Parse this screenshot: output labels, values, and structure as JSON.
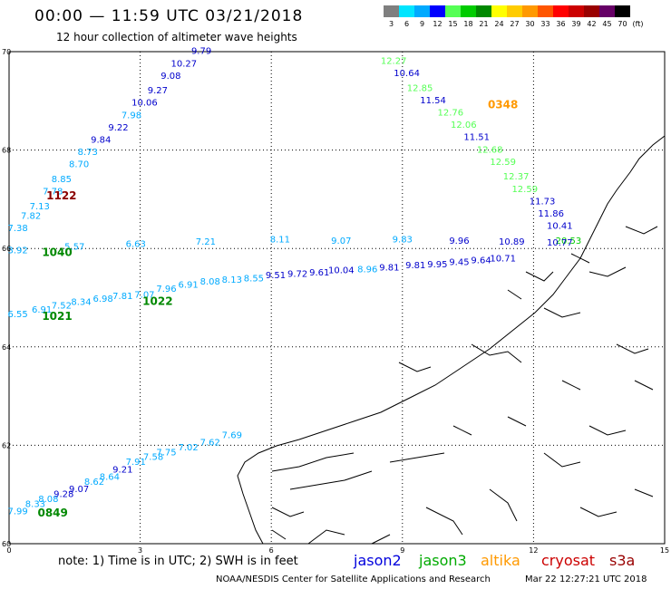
{
  "header": {
    "title": "00:00 — 11:59 UTC 03/21/2018",
    "subtitle": "12 hour collection of altimeter wave heights"
  },
  "colorbar": {
    "labels": [
      "3",
      "6",
      "9",
      "12",
      "15",
      "18",
      "21",
      "24",
      "27",
      "30",
      "33",
      "36",
      "39",
      "42",
      "45",
      "70",
      "(ft)"
    ],
    "colors": [
      "#7f7f7f",
      "#00e5ff",
      "#00aaff",
      "#0000ff",
      "#55ff55",
      "#00cc00",
      "#008800",
      "#ffff00",
      "#ffcc00",
      "#ff9900",
      "#ff5500",
      "#ff0000",
      "#cc0000",
      "#990000",
      "#660066",
      "#000000"
    ]
  },
  "axes": {
    "x_ticks": [
      "0",
      "3",
      "6",
      "9",
      "12",
      "15"
    ],
    "y_ticks": [
      "70",
      "68",
      "66",
      "64",
      "62",
      "60"
    ]
  },
  "chart_data": {
    "type": "scatter",
    "xlabel": "",
    "ylabel": "",
    "xlim": [
      0,
      15
    ],
    "ylim": [
      60,
      70
    ],
    "tracks": [
      {
        "name": "track_a_1122",
        "time_label": "1122",
        "time_color": "#8b0000",
        "time_pos": [
          1.2,
          67.0
        ],
        "points": [
          {
            "x": 4.4,
            "y": 69.95,
            "v": "9.79",
            "c": "#0000cc"
          },
          {
            "x": 4.0,
            "y": 69.7,
            "v": "10.27",
            "c": "#0000cc"
          },
          {
            "x": 3.7,
            "y": 69.45,
            "v": "9.08",
            "c": "#0000cc"
          },
          {
            "x": 3.4,
            "y": 69.15,
            "v": "9.27",
            "c": "#0000cc"
          },
          {
            "x": 3.1,
            "y": 68.9,
            "v": "10.06",
            "c": "#0000cc"
          },
          {
            "x": 2.8,
            "y": 68.65,
            "v": "7.98",
            "c": "#00aaff"
          },
          {
            "x": 2.5,
            "y": 68.4,
            "v": "9.22",
            "c": "#0000cc"
          },
          {
            "x": 2.1,
            "y": 68.15,
            "v": "9.84",
            "c": "#0000cc"
          },
          {
            "x": 1.8,
            "y": 67.9,
            "v": "8.73",
            "c": "#00aaff"
          },
          {
            "x": 1.6,
            "y": 67.65,
            "v": "8.70",
            "c": "#00aaff"
          },
          {
            "x": 1.2,
            "y": 67.35,
            "v": "8.85",
            "c": "#00aaff"
          },
          {
            "x": 1.0,
            "y": 67.1,
            "v": "7.78",
            "c": "#00aaff"
          },
          {
            "x": 0.7,
            "y": 66.8,
            "v": "7.13",
            "c": "#00aaff"
          },
          {
            "x": 0.5,
            "y": 66.6,
            "v": "7.82",
            "c": "#00aaff"
          },
          {
            "x": 0.2,
            "y": 66.35,
            "v": "7.38",
            "c": "#00aaff"
          }
        ]
      },
      {
        "name": "track_b_0348",
        "time_label": "0348",
        "time_color": "#ff9900",
        "time_pos": [
          11.3,
          68.85
        ],
        "points": [
          {
            "x": 8.8,
            "y": 69.75,
            "v": "12.27",
            "c": "#55ff55"
          },
          {
            "x": 9.1,
            "y": 69.5,
            "v": "10.64",
            "c": "#0000cc"
          },
          {
            "x": 9.4,
            "y": 69.2,
            "v": "12.85",
            "c": "#55ff55"
          },
          {
            "x": 9.7,
            "y": 68.95,
            "v": "11.54",
            "c": "#0000cc"
          },
          {
            "x": 10.1,
            "y": 68.7,
            "v": "12.76",
            "c": "#55ff55"
          },
          {
            "x": 10.4,
            "y": 68.45,
            "v": "12.06",
            "c": "#55ff55"
          },
          {
            "x": 10.7,
            "y": 68.2,
            "v": "11.51",
            "c": "#0000cc"
          },
          {
            "x": 11.0,
            "y": 67.95,
            "v": "12.68",
            "c": "#55ff55"
          },
          {
            "x": 11.3,
            "y": 67.7,
            "v": "12.59",
            "c": "#55ff55"
          },
          {
            "x": 11.6,
            "y": 67.4,
            "v": "12.37",
            "c": "#55ff55"
          },
          {
            "x": 11.8,
            "y": 67.15,
            "v": "12.59",
            "c": "#55ff55"
          },
          {
            "x": 12.2,
            "y": 66.9,
            "v": "11.73",
            "c": "#0000cc"
          },
          {
            "x": 12.4,
            "y": 66.65,
            "v": "11.86",
            "c": "#0000cc"
          },
          {
            "x": 12.6,
            "y": 66.4,
            "v": "10.41",
            "c": "#0000cc"
          },
          {
            "x": 12.8,
            "y": 66.1,
            "v": "20.53",
            "c": "#00cc00"
          }
        ]
      },
      {
        "name": "track_c_1040",
        "time_label": "1040",
        "time_color": "#008800",
        "time_pos": [
          1.1,
          65.85
        ],
        "points": [
          {
            "x": 0.2,
            "y": 65.9,
            "v": "3.92",
            "c": "#00aaff"
          },
          {
            "x": 1.5,
            "y": 65.98,
            "v": "5.57",
            "c": "#00aaff"
          },
          {
            "x": 2.9,
            "y": 66.03,
            "v": "6.63",
            "c": "#00aaff"
          },
          {
            "x": 4.5,
            "y": 66.08,
            "v": "7.21",
            "c": "#00aaff"
          },
          {
            "x": 6.2,
            "y": 66.12,
            "v": "8.11",
            "c": "#00aaff"
          },
          {
            "x": 7.6,
            "y": 66.1,
            "v": "9.07",
            "c": "#00aaff"
          },
          {
            "x": 9.0,
            "y": 66.12,
            "v": "9.83",
            "c": "#00aaff"
          },
          {
            "x": 10.3,
            "y": 66.1,
            "v": "9.96",
            "c": "#0000cc"
          },
          {
            "x": 11.5,
            "y": 66.08,
            "v": "10.89",
            "c": "#0000cc"
          },
          {
            "x": 12.6,
            "y": 66.06,
            "v": "10.77",
            "c": "#0000cc"
          }
        ]
      },
      {
        "name": "track_d_1022",
        "time_label": "1022",
        "time_color": "#008800",
        "time_pos": [
          3.4,
          64.85
        ],
        "points": [
          {
            "x": 3.1,
            "y": 65.0,
            "v": "7.07",
            "c": "#00aaff"
          },
          {
            "x": 3.6,
            "y": 65.12,
            "v": "7.96",
            "c": "#00aaff"
          },
          {
            "x": 4.1,
            "y": 65.2,
            "v": "6.91",
            "c": "#00aaff"
          },
          {
            "x": 4.6,
            "y": 65.27,
            "v": "8.08",
            "c": "#00aaff"
          },
          {
            "x": 5.1,
            "y": 65.3,
            "v": "8.13",
            "c": "#00aaff"
          },
          {
            "x": 5.6,
            "y": 65.33,
            "v": "8.55",
            "c": "#00aaff"
          },
          {
            "x": 6.1,
            "y": 65.4,
            "v": "9.51",
            "c": "#0000cc"
          },
          {
            "x": 6.6,
            "y": 65.42,
            "v": "9.72",
            "c": "#0000cc"
          },
          {
            "x": 7.1,
            "y": 65.45,
            "v": "9.61",
            "c": "#0000cc"
          },
          {
            "x": 7.6,
            "y": 65.5,
            "v": "10.04",
            "c": "#0000cc"
          },
          {
            "x": 8.2,
            "y": 65.52,
            "v": "8.96",
            "c": "#00aaff"
          },
          {
            "x": 8.7,
            "y": 65.55,
            "v": "9.81",
            "c": "#0000cc"
          },
          {
            "x": 9.3,
            "y": 65.6,
            "v": "9.81",
            "c": "#0000cc"
          },
          {
            "x": 9.8,
            "y": 65.62,
            "v": "9.95",
            "c": "#0000cc"
          },
          {
            "x": 10.3,
            "y": 65.66,
            "v": "9.45",
            "c": "#0000cc"
          },
          {
            "x": 10.8,
            "y": 65.7,
            "v": "9.64",
            "c": "#0000cc"
          },
          {
            "x": 11.3,
            "y": 65.74,
            "v": "10.71",
            "c": "#0000cc"
          }
        ]
      },
      {
        "name": "track_e_1021",
        "time_label": "1021",
        "time_color": "#008800",
        "time_pos": [
          1.1,
          64.55
        ],
        "points": [
          {
            "x": 0.2,
            "y": 64.6,
            "v": "6.55",
            "c": "#00aaff"
          },
          {
            "x": 0.75,
            "y": 64.7,
            "v": "6.91",
            "c": "#00aaff"
          },
          {
            "x": 1.2,
            "y": 64.78,
            "v": "7.52",
            "c": "#00aaff"
          },
          {
            "x": 1.65,
            "y": 64.85,
            "v": "8.34",
            "c": "#00aaff"
          },
          {
            "x": 2.15,
            "y": 64.92,
            "v": "6.98",
            "c": "#00aaff"
          },
          {
            "x": 2.6,
            "y": 64.97,
            "v": "7.81",
            "c": "#00aaff"
          }
        ]
      },
      {
        "name": "track_f_0849",
        "time_label": "0849",
        "time_color": "#008800",
        "time_pos": [
          1.0,
          60.55
        ],
        "points": [
          {
            "x": 0.2,
            "y": 60.6,
            "v": "7.99",
            "c": "#00aaff"
          },
          {
            "x": 0.6,
            "y": 60.75,
            "v": "8.33",
            "c": "#00aaff"
          },
          {
            "x": 0.9,
            "y": 60.85,
            "v": "8.08",
            "c": "#00aaff"
          },
          {
            "x": 1.25,
            "y": 60.95,
            "v": "9.28",
            "c": "#0000cc"
          },
          {
            "x": 1.6,
            "y": 61.05,
            "v": "9.07",
            "c": "#0000cc"
          },
          {
            "x": 1.95,
            "y": 61.2,
            "v": "8.62",
            "c": "#00aaff"
          },
          {
            "x": 2.3,
            "y": 61.3,
            "v": "8.64",
            "c": "#00aaff"
          },
          {
            "x": 2.6,
            "y": 61.45,
            "v": "9.21",
            "c": "#0000cc"
          },
          {
            "x": 2.9,
            "y": 61.6,
            "v": "7.91",
            "c": "#00aaff"
          },
          {
            "x": 3.3,
            "y": 61.7,
            "v": "7.58",
            "c": "#00aaff"
          },
          {
            "x": 3.6,
            "y": 61.8,
            "v": "7.75",
            "c": "#00aaff"
          },
          {
            "x": 4.1,
            "y": 61.9,
            "v": "7.02",
            "c": "#00aaff"
          },
          {
            "x": 4.6,
            "y": 62.0,
            "v": "7.62",
            "c": "#00aaff"
          },
          {
            "x": 5.1,
            "y": 62.15,
            "v": "7.69",
            "c": "#00aaff"
          }
        ]
      }
    ]
  },
  "footer": {
    "note": "note: 1) Time is in UTC; 2) SWH is in feet",
    "legend": [
      {
        "label": "jason2",
        "color": "#0000dd"
      },
      {
        "label": "jason3",
        "color": "#00aa00"
      },
      {
        "label": "altika",
        "color": "#ff9900"
      },
      {
        "label": "cryosat",
        "color": "#cc0000"
      },
      {
        "label": "s3a",
        "color": "#990000"
      }
    ],
    "credit": "NOAA/NESDIS Center for Satellite Applications and Research",
    "timestamp": "Mar 22 12:27:21 UTC 2018"
  }
}
